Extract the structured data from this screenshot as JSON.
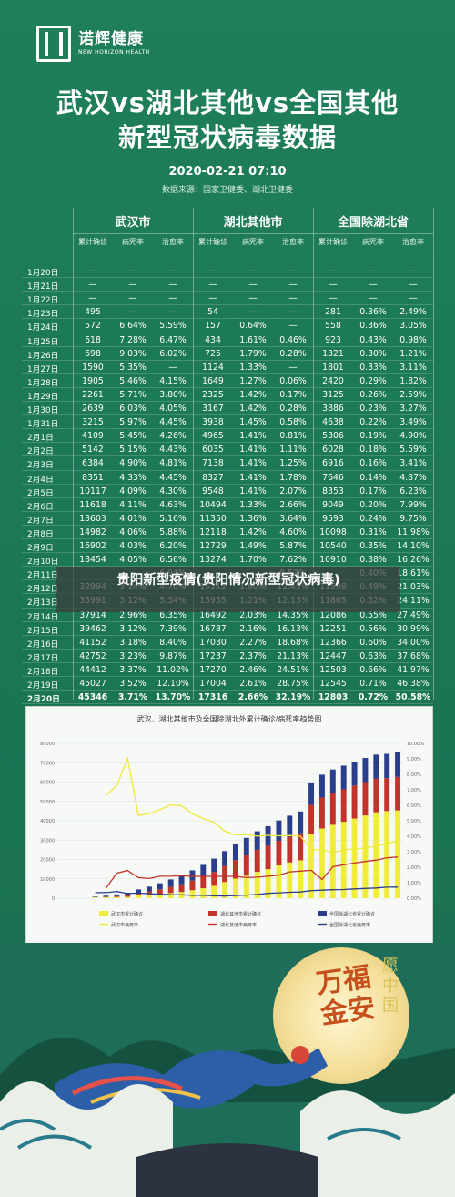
{
  "brand": {
    "name_cn": "诺辉健康",
    "name_en": "NEW HORIZON HEALTH"
  },
  "title": {
    "line1": "武汉vs湖北其他vs全国其他",
    "line2": "新型冠状病毒数据"
  },
  "datetime": "2020-02-21  07:10",
  "source": "数据来源：国家卫健委、湖北卫健委",
  "table": {
    "groups": [
      "武汉市",
      "湖北其他市",
      "全国除湖北省"
    ],
    "subheaders": [
      "累计确诊",
      "病死率",
      "治愈率"
    ],
    "rows": [
      {
        "date": "1月20日",
        "w": [
          "—",
          "—",
          "—"
        ],
        "h": [
          "—",
          "—",
          "—"
        ],
        "n": [
          "—",
          "—",
          "—"
        ]
      },
      {
        "date": "1月21日",
        "w": [
          "—",
          "—",
          "—"
        ],
        "h": [
          "—",
          "—",
          "—"
        ],
        "n": [
          "—",
          "—",
          "—"
        ]
      },
      {
        "date": "1月22日",
        "w": [
          "—",
          "—",
          "—"
        ],
        "h": [
          "—",
          "—",
          "—"
        ],
        "n": [
          "—",
          "—",
          "—"
        ]
      },
      {
        "date": "1月23日",
        "w": [
          "495",
          "—",
          "—"
        ],
        "h": [
          "54",
          "—",
          "—"
        ],
        "n": [
          "281",
          "0.36%",
          "2.49%"
        ]
      },
      {
        "date": "1月24日",
        "w": [
          "572",
          "6.64%",
          "5.59%"
        ],
        "h": [
          "157",
          "0.64%",
          "—"
        ],
        "n": [
          "558",
          "0.36%",
          "3.05%"
        ]
      },
      {
        "date": "1月25日",
        "w": [
          "618",
          "7.28%",
          "6.47%"
        ],
        "h": [
          "434",
          "1.61%",
          "0.46%"
        ],
        "n": [
          "923",
          "0.43%",
          "0.98%"
        ]
      },
      {
        "date": "1月26日",
        "w": [
          "698",
          "9.03%",
          "6.02%"
        ],
        "h": [
          "725",
          "1.79%",
          "0.28%"
        ],
        "n": [
          "1321",
          "0.30%",
          "1.21%"
        ]
      },
      {
        "date": "1月27日",
        "w": [
          "1590",
          "5.35%",
          "—"
        ],
        "h": [
          "1124",
          "1.33%",
          "—"
        ],
        "n": [
          "1801",
          "0.33%",
          "3.11%"
        ]
      },
      {
        "date": "1月28日",
        "w": [
          "1905",
          "5.46%",
          "4.15%"
        ],
        "h": [
          "1649",
          "1.27%",
          "0.06%"
        ],
        "n": [
          "2420",
          "0.29%",
          "1.82%"
        ]
      },
      {
        "date": "1月29日",
        "w": [
          "2261",
          "5.71%",
          "3.80%"
        ],
        "h": [
          "2325",
          "1.42%",
          "0.17%"
        ],
        "n": [
          "3125",
          "0.26%",
          "2.59%"
        ]
      },
      {
        "date": "1月30日",
        "w": [
          "2639",
          "6.03%",
          "4.05%"
        ],
        "h": [
          "3167",
          "1.42%",
          "0.28%"
        ],
        "n": [
          "3886",
          "0.23%",
          "3.27%"
        ]
      },
      {
        "date": "1月31日",
        "w": [
          "3215",
          "5.97%",
          "4.45%"
        ],
        "h": [
          "3938",
          "1.45%",
          "0.58%"
        ],
        "n": [
          "4638",
          "0.22%",
          "3.49%"
        ]
      },
      {
        "date": "2月1日",
        "w": [
          "4109",
          "5.45%",
          "4.26%"
        ],
        "h": [
          "4965",
          "1.41%",
          "0.81%"
        ],
        "n": [
          "5306",
          "0.19%",
          "4.90%"
        ]
      },
      {
        "date": "2月2日",
        "w": [
          "5142",
          "5.15%",
          "4.43%"
        ],
        "h": [
          "6035",
          "1.41%",
          "1.11%"
        ],
        "n": [
          "6028",
          "0.18%",
          "5.59%"
        ]
      },
      {
        "date": "2月3日",
        "w": [
          "6384",
          "4.90%",
          "4.81%"
        ],
        "h": [
          "7138",
          "1.41%",
          "1.25%"
        ],
        "n": [
          "6916",
          "0.16%",
          "3.41%"
        ]
      },
      {
        "date": "2月4日",
        "w": [
          "8351",
          "4.33%",
          "4.45%"
        ],
        "h": [
          "8327",
          "1.41%",
          "1.78%"
        ],
        "n": [
          "7646",
          "0.14%",
          "4.87%"
        ]
      },
      {
        "date": "2月5日",
        "w": [
          "10117",
          "4.09%",
          "4.30%"
        ],
        "h": [
          "9548",
          "1.41%",
          "2.07%"
        ],
        "n": [
          "8353",
          "0.17%",
          "6.23%"
        ]
      },
      {
        "date": "2月6日",
        "w": [
          "11618",
          "4.11%",
          "4.63%"
        ],
        "h": [
          "10494",
          "1.33%",
          "2.66%"
        ],
        "n": [
          "9049",
          "0.20%",
          "7.99%"
        ]
      },
      {
        "date": "2月7日",
        "w": [
          "13603",
          "4.01%",
          "5.16%"
        ],
        "h": [
          "11350",
          "1.36%",
          "3.64%"
        ],
        "n": [
          "9593",
          "0.24%",
          "9.75%"
        ]
      },
      {
        "date": "2月8日",
        "w": [
          "14982",
          "4.06%",
          "5.88%"
        ],
        "h": [
          "12118",
          "1.42%",
          "4.60%"
        ],
        "n": [
          "10098",
          "0.31%",
          "11.98%"
        ]
      },
      {
        "date": "2月9日",
        "w": [
          "16902",
          "4.03%",
          "6.20%"
        ],
        "h": [
          "12729",
          "1.49%",
          "5.87%"
        ],
        "n": [
          "10540",
          "0.35%",
          "14.10%"
        ]
      },
      {
        "date": "2月10日",
        "w": [
          "18454",
          "4.05%",
          "6.56%"
        ],
        "h": [
          "13274",
          "1.70%",
          "7.62%"
        ],
        "n": [
          "10910",
          "0.38%",
          "16.26%"
        ]
      },
      {
        "date": "2月11日",
        "w": [
          "",
          "",
          "6.94%"
        ],
        "h": [
          "",
          "",
          "8.53%"
        ],
        "n": [
          "",
          "0.40%",
          "18.61%"
        ]
      },
      {
        "date": "2月12日",
        "w": [
          "32994",
          "3.14%",
          "4.70%"
        ],
        "h": [
          "15212",
          "1.80%",
          "12.42%"
        ],
        "n": [
          "11598",
          "0.49%",
          "21.03%"
        ]
      },
      {
        "date": "2月13日",
        "w": [
          "35991",
          "3.12%",
          "5.34%"
        ],
        "h": [
          "15955",
          "1.21%",
          "12.13%"
        ],
        "n": [
          "11865",
          "0.52%",
          "24.11%"
        ]
      },
      {
        "date": "2月14日",
        "w": [
          "37914",
          "2.96%",
          "6.35%"
        ],
        "h": [
          "16492",
          "2.03%",
          "14.35%"
        ],
        "n": [
          "12086",
          "0.55%",
          "27.49%"
        ]
      },
      {
        "date": "2月15日",
        "w": [
          "39462",
          "3.12%",
          "7.39%"
        ],
        "h": [
          "16787",
          "2.16%",
          "16.13%"
        ],
        "n": [
          "12251",
          "0.56%",
          "30.99%"
        ]
      },
      {
        "date": "2月16日",
        "w": [
          "41152",
          "3.18%",
          "8.40%"
        ],
        "h": [
          "17030",
          "2.27%",
          "18.68%"
        ],
        "n": [
          "12366",
          "0.60%",
          "34.00%"
        ]
      },
      {
        "date": "2月17日",
        "w": [
          "42752",
          "3.23%",
          "9.87%"
        ],
        "h": [
          "17237",
          "2.37%",
          "21.13%"
        ],
        "n": [
          "12447",
          "0.63%",
          "37.68%"
        ]
      },
      {
        "date": "2月18日",
        "w": [
          "44412",
          "3.37%",
          "11.02%"
        ],
        "h": [
          "17270",
          "2.46%",
          "24.51%"
        ],
        "n": [
          "12503",
          "0.66%",
          "41.97%"
        ]
      },
      {
        "date": "2月19日",
        "w": [
          "45027",
          "3.52%",
          "12.10%"
        ],
        "h": [
          "17004",
          "2.61%",
          "28.75%"
        ],
        "n": [
          "12545",
          "0.71%",
          "46.38%"
        ]
      },
      {
        "date": "2月20日",
        "w": [
          "45346",
          "3.71%",
          "13.70%"
        ],
        "h": [
          "17316",
          "2.66%",
          "32.19%"
        ],
        "n": [
          "12803",
          "0.72%",
          "50.58%"
        ]
      }
    ]
  },
  "overlay": {
    "text": "贵阳新型疫情(贵阳情况新型冠状病毒)"
  },
  "chart": {
    "title": "武汉、湖北其他市及全国除湖北外累计确诊/病死率趋势图",
    "y_left_ticks": [
      "80000",
      "70000",
      "60000",
      "50000",
      "40000",
      "30000",
      "20000",
      "10000",
      "0"
    ],
    "y_right_ticks": [
      "10.00%",
      "9.00%",
      "8.00%",
      "7.00%",
      "6.00%",
      "5.00%",
      "4.00%",
      "3.00%",
      "2.00%",
      "1.00%",
      "0.00%"
    ],
    "legend": [
      "武汉市累计确诊",
      "湖北其他市累计确诊",
      "全国除湖北省累计确诊",
      "武汉市病死率",
      "湖北其他市病死率",
      "全国除湖北省病死率"
    ],
    "colors": {
      "wuhan": "#f0ec3c",
      "hubei": "#c2342b",
      "national": "#2a3e8c",
      "wuhan_rate": "#f0ec3c",
      "hubei_rate": "#c2342b",
      "national_rate": "#2a3e8c"
    }
  },
  "chart_data": {
    "type": "bar",
    "title": "武汉、湖北其他市及全国除湖北外累计确诊/病死率趋势图",
    "ylim": [
      0,
      80000
    ],
    "y2lim": [
      0,
      10
    ],
    "series": [
      {
        "name": "武汉市累计确诊",
        "values": [
          0,
          0,
          0,
          495,
          572,
          618,
          698,
          1590,
          1905,
          2261,
          2639,
          3215,
          4109,
          5142,
          6384,
          8351,
          10117,
          11618,
          13603,
          14982,
          16902,
          18454,
          19558,
          32994,
          35991,
          37914,
          39462,
          41152,
          42752,
          44412,
          45027,
          45346
        ]
      },
      {
        "name": "湖北其他市累计确诊",
        "values": [
          0,
          0,
          0,
          54,
          157,
          434,
          725,
          1124,
          1649,
          2325,
          3167,
          3938,
          4965,
          6035,
          7138,
          8327,
          9548,
          10494,
          11350,
          12118,
          12729,
          13274,
          14000,
          15212,
          15955,
          16492,
          16787,
          17030,
          17237,
          17270,
          17004,
          17316
        ]
      },
      {
        "name": "全国除湖北省累计确诊",
        "values": [
          0,
          0,
          0,
          281,
          558,
          923,
          1321,
          1801,
          2420,
          3125,
          3886,
          4638,
          5306,
          6028,
          6916,
          7646,
          8353,
          9049,
          9593,
          10098,
          10540,
          10910,
          11250,
          11598,
          11865,
          12086,
          12251,
          12366,
          12447,
          12503,
          12545,
          12803
        ]
      },
      {
        "name": "武汉市病死率",
        "values": [
          null,
          null,
          null,
          null,
          6.64,
          7.28,
          9.03,
          5.35,
          5.46,
          5.71,
          6.03,
          5.97,
          5.45,
          5.15,
          4.9,
          4.33,
          4.09,
          4.11,
          4.01,
          4.06,
          4.03,
          4.05,
          4.0,
          3.14,
          3.12,
          2.96,
          3.12,
          3.18,
          3.23,
          3.37,
          3.52,
          3.71
        ]
      },
      {
        "name": "湖北其他市病死率",
        "values": [
          null,
          null,
          null,
          null,
          0.64,
          1.61,
          1.79,
          1.33,
          1.27,
          1.42,
          1.42,
          1.45,
          1.41,
          1.41,
          1.41,
          1.41,
          1.41,
          1.33,
          1.36,
          1.42,
          1.49,
          1.7,
          1.75,
          1.8,
          1.21,
          2.03,
          2.16,
          2.27,
          2.37,
          2.46,
          2.61,
          2.66
        ]
      },
      {
        "name": "全国除湖北省病死率",
        "values": [
          null,
          null,
          null,
          0.36,
          0.36,
          0.43,
          0.3,
          0.33,
          0.29,
          0.26,
          0.23,
          0.22,
          0.19,
          0.18,
          0.16,
          0.14,
          0.17,
          0.2,
          0.24,
          0.31,
          0.35,
          0.38,
          0.4,
          0.49,
          0.52,
          0.55,
          0.56,
          0.6,
          0.63,
          0.66,
          0.71,
          0.72
        ]
      }
    ]
  },
  "art": {
    "blessing": "万福金安",
    "wish": "愿中国"
  }
}
